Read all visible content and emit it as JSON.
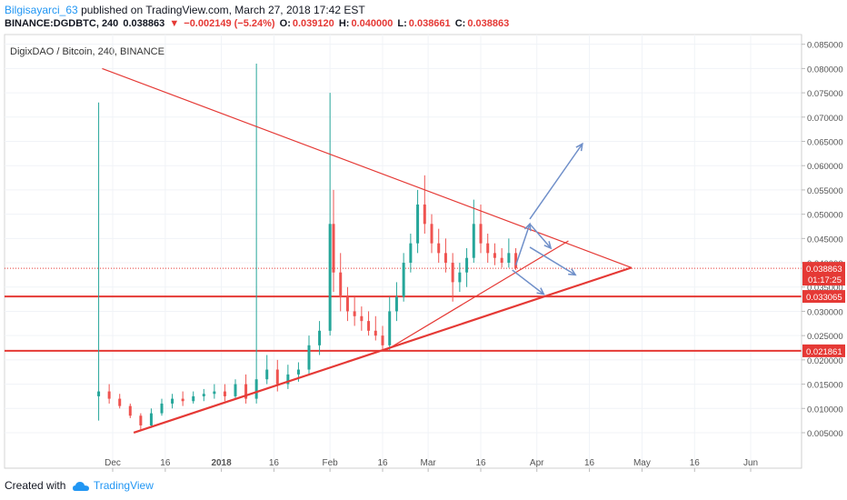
{
  "header": {
    "author": "Bilgisayarci_63",
    "published_text": "published on TradingView.com, March 27, 2018 17:42 EST",
    "symbol": "BINANCE:DGDBTC, 240",
    "last": "0.038863",
    "change": "−0.002149 (−5.24%)",
    "open_label": "O:",
    "open": "0.039120",
    "high_label": "H:",
    "high": "0.040000",
    "low_label": "L:",
    "low": "0.038661",
    "close_label": "C:",
    "close": "0.038863"
  },
  "footer": {
    "created_with": "Created with",
    "brand": "TradingView"
  },
  "colors": {
    "candle_up": "#26a69a",
    "candle_down": "#ef5350",
    "trendline": "#e53935",
    "arrow": "#6f8fc9",
    "axis_text": "#555555"
  },
  "chart_data": {
    "type": "candlestick",
    "title": "DigixDAO / Bitcoin, 240, BINANCE",
    "x_tick_labels": [
      "Dec",
      "16",
      "2018",
      "16",
      "Feb",
      "16",
      "Mar",
      "16",
      "Apr",
      "16",
      "May",
      "16",
      "Jun"
    ],
    "y_tick_labels": [
      "0.085000",
      "0.080000",
      "0.075000",
      "0.070000",
      "0.065000",
      "0.060000",
      "0.055000",
      "0.050000",
      "0.045000",
      "0.040000",
      "0.035000",
      "0.030000",
      "0.025000",
      "0.020000",
      "0.015000",
      "0.010000",
      "0.005000"
    ],
    "ylim": [
      0.002,
      0.087
    ],
    "price_badges": [
      {
        "value": "0.038863",
        "time": "01:17:25"
      },
      {
        "value": "0.033065"
      },
      {
        "value": "0.021861"
      }
    ],
    "horizontal_levels": [
      0.033065,
      0.021861
    ],
    "current_price": 0.038863,
    "trendlines": [
      {
        "from": [
          "2017-11-28",
          0.08
        ],
        "to": [
          "2018-04-28",
          0.039
        ]
      },
      {
        "from": [
          "2017-12-07",
          0.005
        ],
        "to": [
          "2018-04-28",
          0.039
        ]
      },
      {
        "from": [
          "2018-02-17",
          0.022
        ],
        "to": [
          "2018-04-10",
          0.0445
        ]
      }
    ],
    "projection_arrows": [
      {
        "from": [
          "2018-03-30",
          0.049
        ],
        "to": [
          "2018-04-14",
          0.0645
        ]
      },
      {
        "from": [
          "2018-03-26",
          0.0395
        ],
        "to": [
          "2018-03-30",
          0.048
        ]
      },
      {
        "from": [
          "2018-03-30",
          0.048
        ],
        "to": [
          "2018-04-05",
          0.043
        ]
      },
      {
        "from": [
          "2018-03-30",
          0.0432
        ],
        "to": [
          "2018-04-12",
          0.0375
        ]
      },
      {
        "from": [
          "2018-03-25",
          0.0385
        ],
        "to": [
          "2018-04-03",
          0.0335
        ]
      }
    ],
    "candles": [
      {
        "date": "2017-11-27",
        "o": 0.0125,
        "h": 0.073,
        "l": 0.0075,
        "c": 0.0135
      },
      {
        "date": "2017-11-30",
        "o": 0.0135,
        "h": 0.015,
        "l": 0.011,
        "c": 0.012
      },
      {
        "date": "2017-12-03",
        "o": 0.012,
        "h": 0.013,
        "l": 0.01,
        "c": 0.0105
      },
      {
        "date": "2017-12-06",
        "o": 0.0105,
        "h": 0.011,
        "l": 0.008,
        "c": 0.0085
      },
      {
        "date": "2017-12-09",
        "o": 0.0085,
        "h": 0.009,
        "l": 0.0055,
        "c": 0.0065
      },
      {
        "date": "2017-12-12",
        "o": 0.0065,
        "h": 0.01,
        "l": 0.006,
        "c": 0.009
      },
      {
        "date": "2017-12-15",
        "o": 0.009,
        "h": 0.012,
        "l": 0.0085,
        "c": 0.011
      },
      {
        "date": "2017-12-18",
        "o": 0.011,
        "h": 0.013,
        "l": 0.01,
        "c": 0.012
      },
      {
        "date": "2017-12-21",
        "o": 0.012,
        "h": 0.0135,
        "l": 0.0105,
        "c": 0.0115
      },
      {
        "date": "2017-12-24",
        "o": 0.0115,
        "h": 0.0135,
        "l": 0.011,
        "c": 0.0125
      },
      {
        "date": "2017-12-27",
        "o": 0.0125,
        "h": 0.014,
        "l": 0.0115,
        "c": 0.013
      },
      {
        "date": "2017-12-30",
        "o": 0.013,
        "h": 0.015,
        "l": 0.012,
        "c": 0.0135
      },
      {
        "date": "2018-01-02",
        "o": 0.0135,
        "h": 0.015,
        "l": 0.0115,
        "c": 0.0125
      },
      {
        "date": "2018-01-05",
        "o": 0.0125,
        "h": 0.016,
        "l": 0.012,
        "c": 0.015
      },
      {
        "date": "2018-01-08",
        "o": 0.015,
        "h": 0.017,
        "l": 0.011,
        "c": 0.012
      },
      {
        "date": "2018-01-11",
        "o": 0.012,
        "h": 0.081,
        "l": 0.011,
        "c": 0.016
      },
      {
        "date": "2018-01-14",
        "o": 0.016,
        "h": 0.021,
        "l": 0.015,
        "c": 0.018
      },
      {
        "date": "2018-01-17",
        "o": 0.018,
        "h": 0.02,
        "l": 0.0135,
        "c": 0.015
      },
      {
        "date": "2018-01-20",
        "o": 0.015,
        "h": 0.019,
        "l": 0.014,
        "c": 0.017
      },
      {
        "date": "2018-01-23",
        "o": 0.017,
        "h": 0.0195,
        "l": 0.0155,
        "c": 0.018
      },
      {
        "date": "2018-01-26",
        "o": 0.018,
        "h": 0.025,
        "l": 0.017,
        "c": 0.023
      },
      {
        "date": "2018-01-29",
        "o": 0.023,
        "h": 0.028,
        "l": 0.021,
        "c": 0.026
      },
      {
        "date": "2018-02-01",
        "o": 0.026,
        "h": 0.075,
        "l": 0.025,
        "c": 0.048
      },
      {
        "date": "2018-02-02",
        "o": 0.048,
        "h": 0.055,
        "l": 0.034,
        "c": 0.038
      },
      {
        "date": "2018-02-04",
        "o": 0.038,
        "h": 0.042,
        "l": 0.03,
        "c": 0.033
      },
      {
        "date": "2018-02-06",
        "o": 0.033,
        "h": 0.035,
        "l": 0.028,
        "c": 0.03
      },
      {
        "date": "2018-02-08",
        "o": 0.03,
        "h": 0.033,
        "l": 0.027,
        "c": 0.029
      },
      {
        "date": "2018-02-10",
        "o": 0.029,
        "h": 0.031,
        "l": 0.026,
        "c": 0.028
      },
      {
        "date": "2018-02-12",
        "o": 0.028,
        "h": 0.03,
        "l": 0.025,
        "c": 0.026
      },
      {
        "date": "2018-02-14",
        "o": 0.026,
        "h": 0.029,
        "l": 0.024,
        "c": 0.025
      },
      {
        "date": "2018-02-16",
        "o": 0.025,
        "h": 0.027,
        "l": 0.022,
        "c": 0.023
      },
      {
        "date": "2018-02-18",
        "o": 0.023,
        "h": 0.033,
        "l": 0.022,
        "c": 0.03
      },
      {
        "date": "2018-02-20",
        "o": 0.03,
        "h": 0.036,
        "l": 0.028,
        "c": 0.033
      },
      {
        "date": "2018-02-22",
        "o": 0.033,
        "h": 0.042,
        "l": 0.032,
        "c": 0.04
      },
      {
        "date": "2018-02-24",
        "o": 0.04,
        "h": 0.046,
        "l": 0.038,
        "c": 0.044
      },
      {
        "date": "2018-02-26",
        "o": 0.044,
        "h": 0.055,
        "l": 0.042,
        "c": 0.052
      },
      {
        "date": "2018-02-28",
        "o": 0.052,
        "h": 0.058,
        "l": 0.046,
        "c": 0.048
      },
      {
        "date": "2018-03-02",
        "o": 0.048,
        "h": 0.05,
        "l": 0.042,
        "c": 0.044
      },
      {
        "date": "2018-03-04",
        "o": 0.044,
        "h": 0.047,
        "l": 0.04,
        "c": 0.042
      },
      {
        "date": "2018-03-06",
        "o": 0.042,
        "h": 0.045,
        "l": 0.038,
        "c": 0.04
      },
      {
        "date": "2018-03-08",
        "o": 0.04,
        "h": 0.042,
        "l": 0.032,
        "c": 0.036
      },
      {
        "date": "2018-03-10",
        "o": 0.036,
        "h": 0.04,
        "l": 0.034,
        "c": 0.038
      },
      {
        "date": "2018-03-12",
        "o": 0.038,
        "h": 0.043,
        "l": 0.035,
        "c": 0.041
      },
      {
        "date": "2018-03-14",
        "o": 0.041,
        "h": 0.053,
        "l": 0.04,
        "c": 0.048
      },
      {
        "date": "2018-03-16",
        "o": 0.048,
        "h": 0.052,
        "l": 0.042,
        "c": 0.044
      },
      {
        "date": "2018-03-18",
        "o": 0.044,
        "h": 0.046,
        "l": 0.04,
        "c": 0.042
      },
      {
        "date": "2018-03-20",
        "o": 0.042,
        "h": 0.044,
        "l": 0.0395,
        "c": 0.041
      },
      {
        "date": "2018-03-22",
        "o": 0.041,
        "h": 0.043,
        "l": 0.039,
        "c": 0.04
      },
      {
        "date": "2018-03-24",
        "o": 0.04,
        "h": 0.045,
        "l": 0.039,
        "c": 0.042
      },
      {
        "date": "2018-03-26",
        "o": 0.042,
        "h": 0.043,
        "l": 0.0385,
        "c": 0.0389
      }
    ]
  }
}
